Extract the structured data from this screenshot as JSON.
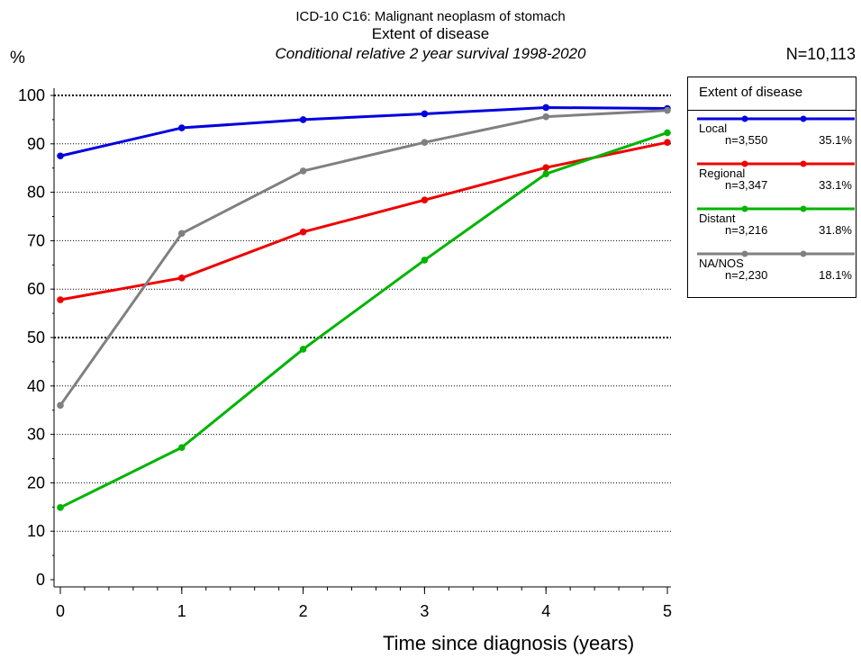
{
  "header": {
    "line1": "ICD-10 C16: Malignant neoplasm of stomach",
    "line2": "Extent of disease",
    "line3": "Conditional relative 2 year survival 1998-2020",
    "y_unit": "%",
    "total": "N=10,113"
  },
  "legend": {
    "title": "Extent of disease",
    "items": [
      {
        "name": "Local",
        "n": "n=3,550",
        "pct": "35.1%"
      },
      {
        "name": "Regional",
        "n": "n=3,347",
        "pct": "33.1%"
      },
      {
        "name": "Distant",
        "n": "n=3,216",
        "pct": "31.8%"
      },
      {
        "name": "NA/NOS",
        "n": "n=2,230",
        "pct": "18.1%"
      }
    ]
  },
  "chart_data": {
    "type": "line",
    "title": "Extent of disease",
    "subtitle": "Conditional relative 2 year survival 1998-2020",
    "xlabel": "Time since diagnosis (years)",
    "ylabel": "%",
    "x": [
      0,
      1,
      2,
      3,
      4,
      5
    ],
    "xlim": [
      0,
      5
    ],
    "ylim": [
      0,
      100
    ],
    "x_ticks": [
      "0",
      "1",
      "2",
      "3",
      "4",
      "5"
    ],
    "y_ticks": [
      "0",
      "10",
      "20",
      "30",
      "40",
      "50",
      "60",
      "70",
      "80",
      "90",
      "100"
    ],
    "grid": "horizontal dotted at 10-unit intervals",
    "legend_position": "right",
    "series": [
      {
        "name": "Local",
        "color": "#0000dd",
        "values": [
          87.5,
          93.3,
          95.0,
          96.2,
          97.5,
          97.3
        ]
      },
      {
        "name": "Regional",
        "color": "#ee0000",
        "values": [
          57.8,
          62.3,
          71.8,
          78.4,
          85.1,
          90.3
        ]
      },
      {
        "name": "Distant",
        "color": "#00b400",
        "values": [
          14.9,
          27.3,
          47.6,
          66.0,
          83.8,
          92.3
        ]
      },
      {
        "name": "NA/NOS",
        "color": "#808080",
        "values": [
          36.0,
          71.5,
          84.4,
          90.3,
          95.6,
          96.9
        ]
      }
    ]
  }
}
